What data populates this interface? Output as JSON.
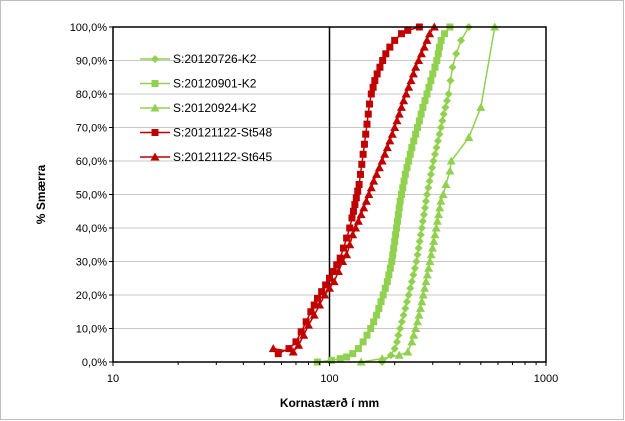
{
  "chart_data": {
    "type": "line",
    "xscale": "log",
    "xlim": [
      10,
      1000
    ],
    "ylim": [
      0,
      100
    ],
    "xlabel": "Kornastærð í mm",
    "ylabel": "% Smærra",
    "xticks": [
      "10",
      "100",
      "1000"
    ],
    "yticks": [
      "0,0%",
      "10,0%",
      "20,0%",
      "30,0%",
      "40,0%",
      "50,0%",
      "60,0%",
      "70,0%",
      "80,0%",
      "90,0%",
      "100,0%"
    ],
    "grid": "horizontal",
    "legend_position": "left",
    "series": [
      {
        "name": "S:20120726-K2",
        "color": "#92d050",
        "marker": "diamond",
        "points": [
          [
            175,
            0
          ],
          [
            192,
            2
          ],
          [
            200,
            4
          ],
          [
            205,
            6
          ],
          [
            208,
            8
          ],
          [
            212,
            10
          ],
          [
            216,
            12
          ],
          [
            220,
            14
          ],
          [
            224,
            16
          ],
          [
            228,
            18
          ],
          [
            232,
            20
          ],
          [
            236,
            22
          ],
          [
            240,
            24
          ],
          [
            244,
            26
          ],
          [
            248,
            28
          ],
          [
            252,
            30
          ],
          [
            255,
            32
          ],
          [
            258,
            34
          ],
          [
            261,
            36
          ],
          [
            264,
            38
          ],
          [
            267,
            40
          ],
          [
            270,
            42
          ],
          [
            273,
            44
          ],
          [
            276,
            46
          ],
          [
            279,
            48
          ],
          [
            282,
            50
          ],
          [
            286,
            52
          ],
          [
            290,
            54
          ],
          [
            294,
            56
          ],
          [
            298,
            58
          ],
          [
            302,
            60
          ],
          [
            307,
            62
          ],
          [
            312,
            64
          ],
          [
            317,
            66
          ],
          [
            322,
            68
          ],
          [
            327,
            70
          ],
          [
            332,
            72
          ],
          [
            337,
            74
          ],
          [
            343,
            76
          ],
          [
            349,
            78
          ],
          [
            355,
            80
          ],
          [
            362,
            84
          ],
          [
            370,
            88
          ],
          [
            385,
            92
          ],
          [
            405,
            96
          ],
          [
            440,
            100
          ]
        ]
      },
      {
        "name": "S:20120901-K2",
        "color": "#92d050",
        "marker": "square",
        "points": [
          [
            88,
            0
          ],
          [
            102,
            0.5
          ],
          [
            112,
            1
          ],
          [
            120,
            1.5
          ],
          [
            128,
            2.5
          ],
          [
            136,
            4
          ],
          [
            143,
            6
          ],
          [
            149,
            8
          ],
          [
            155,
            10
          ],
          [
            160,
            12
          ],
          [
            165,
            14
          ],
          [
            169,
            16
          ],
          [
            173,
            18
          ],
          [
            177,
            20
          ],
          [
            181,
            22
          ],
          [
            185,
            24
          ],
          [
            188,
            26
          ],
          [
            191,
            28
          ],
          [
            194,
            30
          ],
          [
            196,
            32
          ],
          [
            198,
            34
          ],
          [
            200,
            36
          ],
          [
            202,
            38
          ],
          [
            204,
            40
          ],
          [
            206,
            42
          ],
          [
            208,
            44
          ],
          [
            210,
            46
          ],
          [
            212,
            48
          ],
          [
            215,
            50
          ],
          [
            218,
            52
          ],
          [
            221,
            54
          ],
          [
            224,
            56
          ],
          [
            228,
            58
          ],
          [
            232,
            60
          ],
          [
            236,
            62
          ],
          [
            240,
            64
          ],
          [
            245,
            66
          ],
          [
            250,
            68
          ],
          [
            255,
            70
          ],
          [
            260,
            72
          ],
          [
            265,
            74
          ],
          [
            270,
            76
          ],
          [
            276,
            78
          ],
          [
            282,
            80
          ],
          [
            288,
            82
          ],
          [
            294,
            84
          ],
          [
            300,
            86
          ],
          [
            307,
            88
          ],
          [
            313,
            90
          ],
          [
            318,
            92
          ],
          [
            322,
            94
          ],
          [
            328,
            96
          ],
          [
            340,
            98
          ],
          [
            360,
            100
          ]
        ]
      },
      {
        "name": "S:20120924-K2",
        "color": "#92d050",
        "marker": "triangle",
        "points": [
          [
            140,
            0
          ],
          [
            175,
            1
          ],
          [
            210,
            2
          ],
          [
            230,
            3
          ],
          [
            240,
            6
          ],
          [
            245,
            8
          ],
          [
            250,
            10
          ],
          [
            255,
            12
          ],
          [
            259,
            14
          ],
          [
            263,
            16
          ],
          [
            267,
            18
          ],
          [
            271,
            20
          ],
          [
            275,
            22
          ],
          [
            279,
            24
          ],
          [
            283,
            26
          ],
          [
            287,
            28
          ],
          [
            291,
            30
          ],
          [
            295,
            32
          ],
          [
            299,
            34
          ],
          [
            303,
            36
          ],
          [
            307,
            38
          ],
          [
            311,
            40
          ],
          [
            315,
            42
          ],
          [
            319,
            44
          ],
          [
            323,
            46
          ],
          [
            327,
            48
          ],
          [
            335,
            50
          ],
          [
            345,
            53
          ],
          [
            360,
            57
          ],
          [
            365,
            60
          ],
          [
            440,
            67
          ],
          [
            500,
            76
          ],
          [
            580,
            100
          ]
        ]
      },
      {
        "name": "S:20121122-St548",
        "color": "#c00000",
        "marker": "square",
        "points": [
          [
            58,
            2.5
          ],
          [
            65,
            4
          ],
          [
            70,
            6
          ],
          [
            74,
            9
          ],
          [
            78,
            12
          ],
          [
            82,
            15
          ],
          [
            85,
            17
          ],
          [
            88,
            19
          ],
          [
            92,
            21
          ],
          [
            96,
            23
          ],
          [
            100,
            25
          ],
          [
            104,
            27
          ],
          [
            108,
            29
          ],
          [
            112,
            31
          ],
          [
            116,
            34
          ],
          [
            120,
            37
          ],
          [
            124,
            40
          ],
          [
            127,
            43
          ],
          [
            129,
            45
          ],
          [
            131,
            47
          ],
          [
            133,
            49
          ],
          [
            135,
            51
          ],
          [
            137,
            53
          ],
          [
            139,
            56
          ],
          [
            141,
            59
          ],
          [
            143,
            62
          ],
          [
            145,
            65
          ],
          [
            147,
            68
          ],
          [
            149,
            71
          ],
          [
            151,
            74
          ],
          [
            153,
            77
          ],
          [
            156,
            80
          ],
          [
            159,
            82
          ],
          [
            162,
            84
          ],
          [
            166,
            86
          ],
          [
            171,
            88
          ],
          [
            176,
            90
          ],
          [
            182,
            92
          ],
          [
            190,
            94
          ],
          [
            200,
            96
          ],
          [
            215,
            98
          ],
          [
            230,
            99
          ],
          [
            260,
            100
          ]
        ]
      },
      {
        "name": "S:20121122-St645",
        "color": "#c00000",
        "marker": "triangle",
        "points": [
          [
            55,
            4
          ],
          [
            68,
            3
          ],
          [
            72,
            5
          ],
          [
            76,
            8
          ],
          [
            80,
            11
          ],
          [
            85,
            14
          ],
          [
            90,
            17
          ],
          [
            95,
            20
          ],
          [
            100,
            22
          ],
          [
            105,
            24
          ],
          [
            110,
            27
          ],
          [
            115,
            30
          ],
          [
            120,
            32
          ],
          [
            124,
            35
          ],
          [
            128,
            38
          ],
          [
            132,
            40
          ],
          [
            136,
            42
          ],
          [
            140,
            44
          ],
          [
            144,
            46
          ],
          [
            148,
            48
          ],
          [
            152,
            50
          ],
          [
            156,
            52
          ],
          [
            160,
            54
          ],
          [
            165,
            56
          ],
          [
            170,
            58
          ],
          [
            175,
            60
          ],
          [
            180,
            62
          ],
          [
            185,
            64
          ],
          [
            190,
            66
          ],
          [
            195,
            68
          ],
          [
            200,
            70
          ],
          [
            205,
            72
          ],
          [
            210,
            74
          ],
          [
            215,
            76
          ],
          [
            220,
            78
          ],
          [
            226,
            80
          ],
          [
            232,
            82
          ],
          [
            238,
            84
          ],
          [
            244,
            86
          ],
          [
            250,
            88
          ],
          [
            258,
            90
          ],
          [
            266,
            92
          ],
          [
            274,
            94
          ],
          [
            282,
            96
          ],
          [
            290,
            98
          ],
          [
            305,
            100
          ]
        ]
      }
    ]
  }
}
